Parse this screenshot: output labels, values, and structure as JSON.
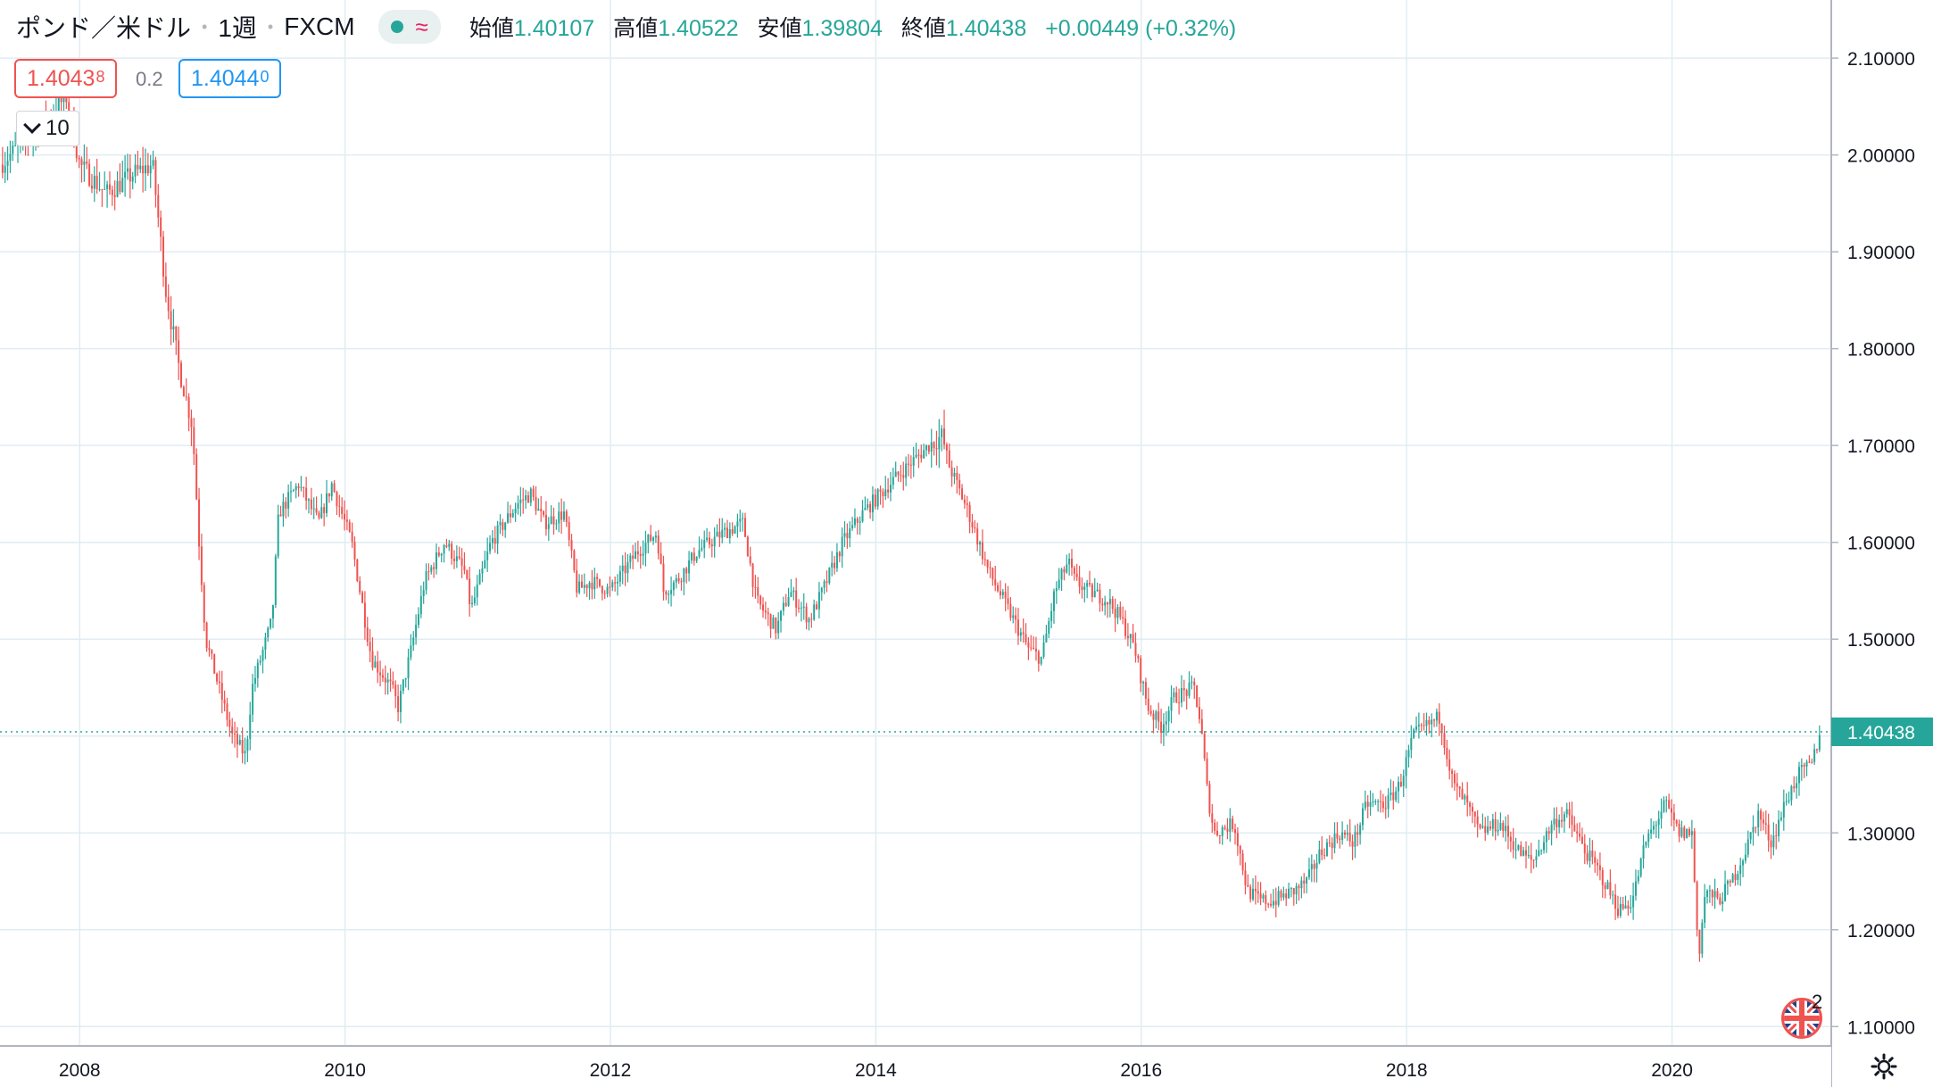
{
  "header": {
    "symbol": "ポンド／米ドル",
    "interval": "1週",
    "source": "FXCM",
    "status_icon": "market-open-dot",
    "status_wave": "≈",
    "ohlc": {
      "open_label": "始値",
      "open": "1.40107",
      "high_label": "高値",
      "high": "1.40522",
      "low_label": "安値",
      "low": "1.39804",
      "close_label": "終値",
      "close": "1.40438",
      "change": "+0.00449 (+0.32%)"
    }
  },
  "trade": {
    "sell_main": "1.4043",
    "sell_pip": "8",
    "spread": "0.2",
    "buy_main": "1.4044",
    "buy_pip": "0"
  },
  "indicator_interval": "10",
  "colors": {
    "up": "#26a69a",
    "down": "#ef5350",
    "grid": "#e1ecf2",
    "last_line": "#26a69a"
  },
  "badges": {
    "events_count": "2",
    "flag_icon": "uk-flag-icon",
    "settings_icon": "gear-icon"
  },
  "chart_data": {
    "type": "candlestick",
    "title": "ポンド／米ドル",
    "frequency": "weekly",
    "x_range": [
      2007.4,
      2021.2
    ],
    "y_range": [
      1.08,
      2.16
    ],
    "xticks": [
      "2008",
      "2010",
      "2012",
      "2014",
      "2016",
      "2018",
      "2020"
    ],
    "xtick_values": [
      2008,
      2010,
      2012,
      2014,
      2016,
      2018,
      2020
    ],
    "yticks": [
      "1.10000",
      "1.20000",
      "1.30000",
      "1.40000",
      "1.50000",
      "1.60000",
      "1.70000",
      "1.80000",
      "1.90000",
      "2.00000",
      "2.10000"
    ],
    "ytick_values": [
      1.1,
      1.2,
      1.3,
      1.4,
      1.5,
      1.6,
      1.7,
      1.8,
      1.9,
      2.0,
      2.1
    ],
    "last_price": 1.40438,
    "last_price_label": "1.40438",
    "grid": true,
    "close_path": [
      [
        2007.4,
        1.99
      ],
      [
        2007.7,
        2.03
      ],
      [
        2007.9,
        2.06
      ],
      [
        2008.0,
        1.99
      ],
      [
        2008.2,
        1.96
      ],
      [
        2008.4,
        1.98
      ],
      [
        2008.55,
        1.99
      ],
      [
        2008.65,
        1.86
      ],
      [
        2008.75,
        1.78
      ],
      [
        2008.85,
        1.72
      ],
      [
        2008.9,
        1.6
      ],
      [
        2008.95,
        1.5
      ],
      [
        2009.05,
        1.45
      ],
      [
        2009.15,
        1.4
      ],
      [
        2009.25,
        1.38
      ],
      [
        2009.3,
        1.45
      ],
      [
        2009.45,
        1.52
      ],
      [
        2009.5,
        1.63
      ],
      [
        2009.65,
        1.66
      ],
      [
        2009.8,
        1.62
      ],
      [
        2009.9,
        1.66
      ],
      [
        2010.05,
        1.6
      ],
      [
        2010.15,
        1.52
      ],
      [
        2010.2,
        1.48
      ],
      [
        2010.35,
        1.45
      ],
      [
        2010.4,
        1.43
      ],
      [
        2010.5,
        1.49
      ],
      [
        2010.6,
        1.56
      ],
      [
        2010.75,
        1.6
      ],
      [
        2010.9,
        1.57
      ],
      [
        2010.95,
        1.53
      ],
      [
        2011.1,
        1.6
      ],
      [
        2011.3,
        1.64
      ],
      [
        2011.4,
        1.65
      ],
      [
        2011.5,
        1.62
      ],
      [
        2011.65,
        1.63
      ],
      [
        2011.75,
        1.55
      ],
      [
        2011.85,
        1.56
      ],
      [
        2012.0,
        1.55
      ],
      [
        2012.2,
        1.59
      ],
      [
        2012.35,
        1.61
      ],
      [
        2012.4,
        1.55
      ],
      [
        2012.5,
        1.56
      ],
      [
        2012.65,
        1.59
      ],
      [
        2012.85,
        1.61
      ],
      [
        2013.0,
        1.62
      ],
      [
        2013.1,
        1.54
      ],
      [
        2013.25,
        1.51
      ],
      [
        2013.35,
        1.55
      ],
      [
        2013.5,
        1.52
      ],
      [
        2013.6,
        1.55
      ],
      [
        2013.75,
        1.6
      ],
      [
        2013.9,
        1.63
      ],
      [
        2014.1,
        1.66
      ],
      [
        2014.25,
        1.68
      ],
      [
        2014.4,
        1.7
      ],
      [
        2014.5,
        1.71
      ],
      [
        2014.55,
        1.68
      ],
      [
        2014.7,
        1.63
      ],
      [
        2014.85,
        1.57
      ],
      [
        2015.0,
        1.53
      ],
      [
        2015.15,
        1.49
      ],
      [
        2015.25,
        1.48
      ],
      [
        2015.35,
        1.55
      ],
      [
        2015.45,
        1.58
      ],
      [
        2015.5,
        1.56
      ],
      [
        2015.6,
        1.55
      ],
      [
        2015.75,
        1.54
      ],
      [
        2015.85,
        1.52
      ],
      [
        2015.95,
        1.49
      ],
      [
        2016.05,
        1.43
      ],
      [
        2016.15,
        1.41
      ],
      [
        2016.25,
        1.44
      ],
      [
        2016.4,
        1.45
      ],
      [
        2016.45,
        1.41
      ],
      [
        2016.5,
        1.34
      ],
      [
        2016.55,
        1.3
      ],
      [
        2016.7,
        1.31
      ],
      [
        2016.8,
        1.24
      ],
      [
        2016.9,
        1.23
      ],
      [
        2017.0,
        1.23
      ],
      [
        2017.15,
        1.24
      ],
      [
        2017.25,
        1.25
      ],
      [
        2017.35,
        1.28
      ],
      [
        2017.5,
        1.3
      ],
      [
        2017.6,
        1.29
      ],
      [
        2017.7,
        1.33
      ],
      [
        2017.85,
        1.33
      ],
      [
        2017.95,
        1.35
      ],
      [
        2018.05,
        1.4
      ],
      [
        2018.15,
        1.41
      ],
      [
        2018.25,
        1.42
      ],
      [
        2018.35,
        1.35
      ],
      [
        2018.45,
        1.33
      ],
      [
        2018.55,
        1.3
      ],
      [
        2018.7,
        1.31
      ],
      [
        2018.85,
        1.28
      ],
      [
        2018.95,
        1.27
      ],
      [
        2019.1,
        1.31
      ],
      [
        2019.2,
        1.32
      ],
      [
        2019.35,
        1.28
      ],
      [
        2019.45,
        1.26
      ],
      [
        2019.6,
        1.22
      ],
      [
        2019.7,
        1.23
      ],
      [
        2019.8,
        1.29
      ],
      [
        2019.95,
        1.33
      ],
      [
        2020.05,
        1.3
      ],
      [
        2020.15,
        1.3
      ],
      [
        2020.2,
        1.17
      ],
      [
        2020.25,
        1.24
      ],
      [
        2020.35,
        1.23
      ],
      [
        2020.45,
        1.25
      ],
      [
        2020.55,
        1.28
      ],
      [
        2020.65,
        1.32
      ],
      [
        2020.75,
        1.29
      ],
      [
        2020.85,
        1.33
      ],
      [
        2020.95,
        1.36
      ],
      [
        2021.05,
        1.37
      ],
      [
        2021.12,
        1.404
      ]
    ]
  }
}
